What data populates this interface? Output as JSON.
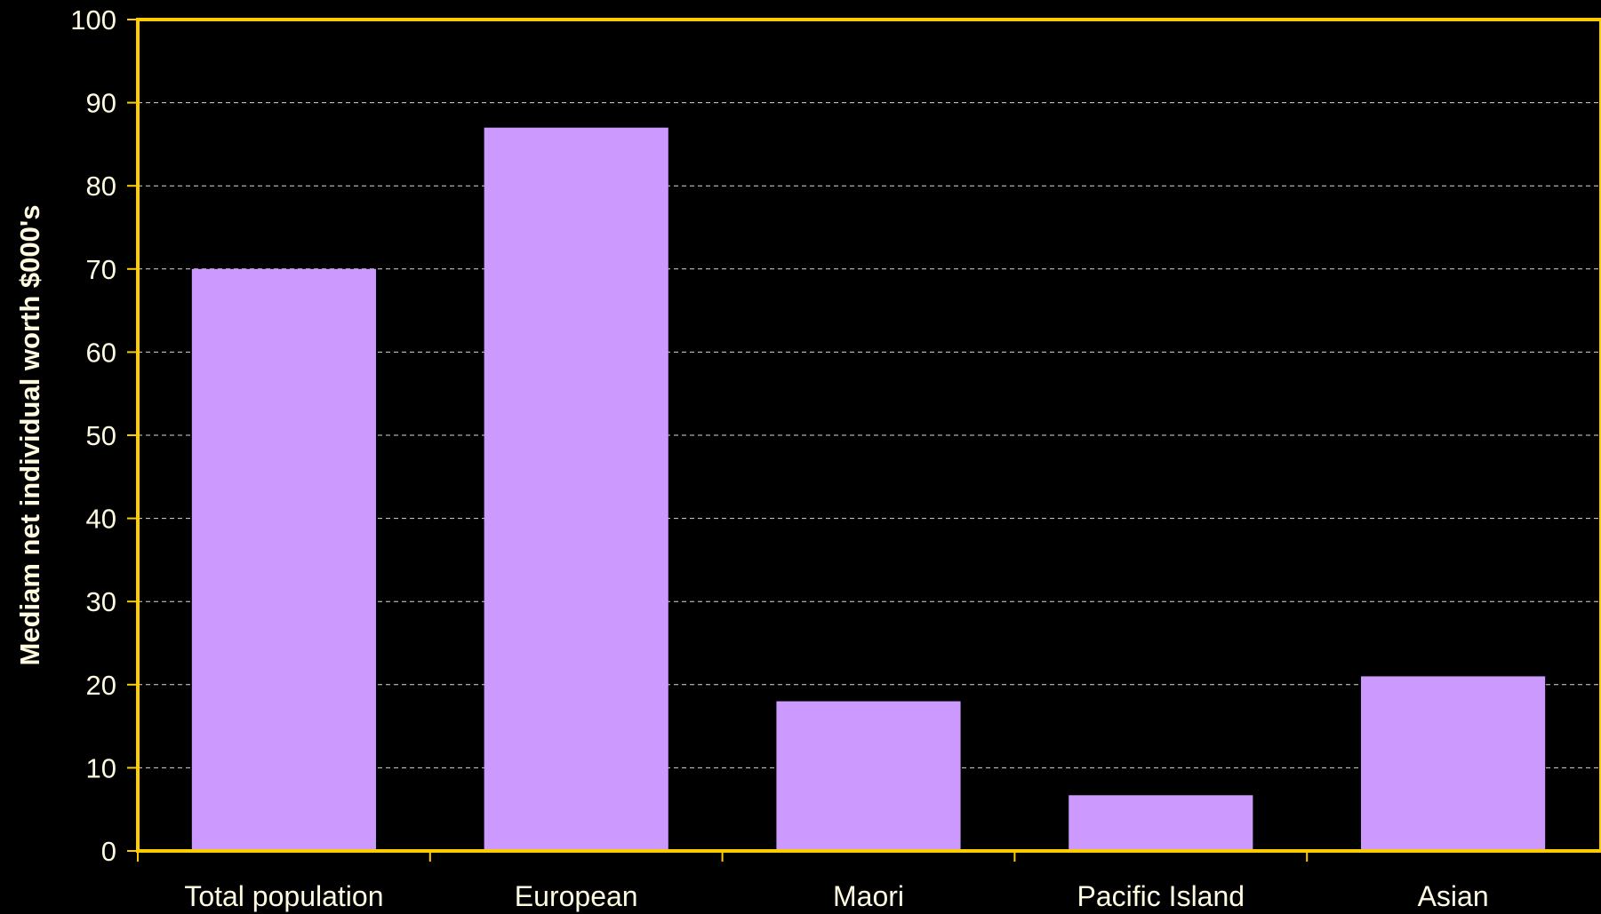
{
  "chart_data": {
    "type": "bar",
    "categories": [
      "Total population",
      "European",
      "Maori",
      "Pacific Island",
      "Asian"
    ],
    "values": [
      70,
      87,
      18,
      6.7,
      21
    ],
    "title": "",
    "xlabel": "",
    "ylabel": "Mediam net individual worth $000's",
    "ylim": [
      0,
      100
    ],
    "yticks": [
      "0",
      "10",
      "20",
      "30",
      "40",
      "50",
      "60",
      "70",
      "80",
      "90",
      "100"
    ],
    "grid": "horizontal dashed",
    "legend": "none",
    "colors": {
      "background": "#000000",
      "bar": "#cc99ff",
      "axis": "#ffcc00",
      "grid": "#ffffff",
      "text": "#fffbe0"
    }
  }
}
